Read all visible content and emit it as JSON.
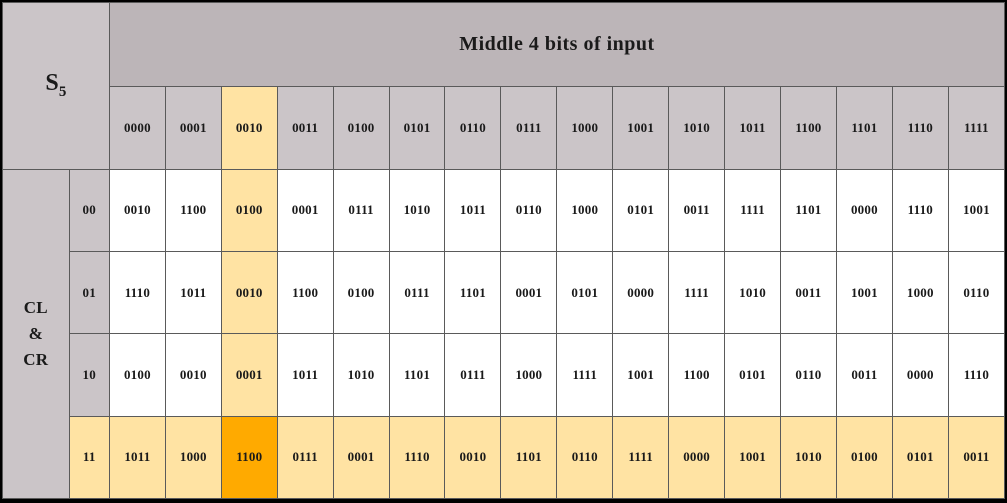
{
  "table": {
    "sbox_base": "S",
    "sbox_sub": "5",
    "column_header_title": "Middle 4 bits of input",
    "row_header_lines": [
      "CL",
      "&",
      "CR"
    ],
    "columns": [
      "0000",
      "0001",
      "0010",
      "0011",
      "0100",
      "0101",
      "0110",
      "0111",
      "1000",
      "1001",
      "1010",
      "1011",
      "1100",
      "1101",
      "1110",
      "1111"
    ],
    "rows": [
      {
        "label": "00",
        "values": [
          "0010",
          "1100",
          "0100",
          "0001",
          "0111",
          "1010",
          "1011",
          "0110",
          "1000",
          "0101",
          "0011",
          "1111",
          "1101",
          "0000",
          "1110",
          "1001"
        ]
      },
      {
        "label": "01",
        "values": [
          "1110",
          "1011",
          "0010",
          "1100",
          "0100",
          "0111",
          "1101",
          "0001",
          "0101",
          "0000",
          "1111",
          "1010",
          "0011",
          "1001",
          "1000",
          "0110"
        ]
      },
      {
        "label": "10",
        "values": [
          "0100",
          "0010",
          "0001",
          "1011",
          "1010",
          "1101",
          "0111",
          "1000",
          "1111",
          "1001",
          "1100",
          "0101",
          "0110",
          "0011",
          "0000",
          "1110"
        ]
      },
      {
        "label": "11",
        "values": [
          "1011",
          "1000",
          "1100",
          "0111",
          "0001",
          "1110",
          "0010",
          "1101",
          "0110",
          "1111",
          "0000",
          "1001",
          "1010",
          "0100",
          "0101",
          "0011"
        ]
      }
    ],
    "highlight": {
      "column_index": 2,
      "row_index": 3
    },
    "colors": {
      "header_gray": "#cbc5c8",
      "highlight_light": "#ffe3a3",
      "highlight_strong": "#ffaa00",
      "border": "#5a5a5a"
    }
  }
}
